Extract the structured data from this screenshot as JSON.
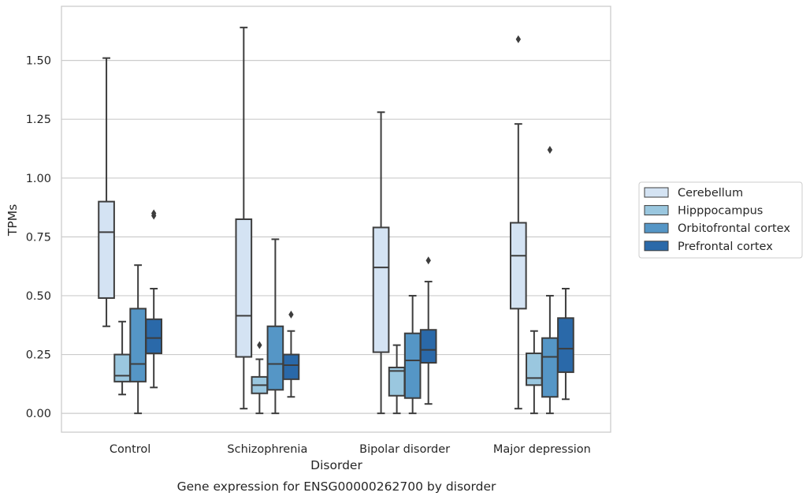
{
  "chart_data": {
    "type": "box",
    "title": "",
    "caption": "Gene expression for ENSG00000262700 by disorder",
    "xlabel": "Disorder",
    "ylabel": "TPMs",
    "ylim": [
      -0.08,
      1.73
    ],
    "yticks": [
      0.0,
      0.25,
      0.5,
      0.75,
      1.0,
      1.25,
      1.5
    ],
    "ytick_labels": [
      "0.00",
      "0.25",
      "0.50",
      "0.75",
      "1.00",
      "1.25",
      "1.50"
    ],
    "grid": "horizontal",
    "legend_position": "right",
    "categories": [
      "Control",
      "Schizophrenia",
      "Bipolar disorder",
      "Major depression"
    ],
    "series": [
      {
        "name": "Cerebellum",
        "color": "#d4e3f3",
        "boxes": [
          {
            "whisker_low": 0.37,
            "q1": 0.49,
            "median": 0.77,
            "q3": 0.9,
            "whisker_high": 1.51,
            "outliers": []
          },
          {
            "whisker_low": 0.02,
            "q1": 0.24,
            "median": 0.415,
            "q3": 0.825,
            "whisker_high": 1.64,
            "outliers": []
          },
          {
            "whisker_low": 0.0,
            "q1": 0.26,
            "median": 0.62,
            "q3": 0.79,
            "whisker_high": 1.28,
            "outliers": []
          },
          {
            "whisker_low": 0.02,
            "q1": 0.445,
            "median": 0.67,
            "q3": 0.81,
            "whisker_high": 1.23,
            "outliers": [
              1.59
            ]
          }
        ]
      },
      {
        "name": "Hipppocampus",
        "color": "#9ac7df",
        "boxes": [
          {
            "whisker_low": 0.08,
            "q1": 0.135,
            "median": 0.16,
            "q3": 0.25,
            "whisker_high": 0.39,
            "outliers": []
          },
          {
            "whisker_low": 0.0,
            "q1": 0.085,
            "median": 0.12,
            "q3": 0.155,
            "whisker_high": 0.23,
            "outliers": [
              0.29
            ]
          },
          {
            "whisker_low": 0.0,
            "q1": 0.075,
            "median": 0.18,
            "q3": 0.195,
            "whisker_high": 0.29,
            "outliers": []
          },
          {
            "whisker_low": 0.0,
            "q1": 0.12,
            "median": 0.15,
            "q3": 0.255,
            "whisker_high": 0.35,
            "outliers": []
          }
        ]
      },
      {
        "name": "Orbitofrontal cortex",
        "color": "#5596c6",
        "boxes": [
          {
            "whisker_low": 0.0,
            "q1": 0.135,
            "median": 0.21,
            "q3": 0.445,
            "whisker_high": 0.63,
            "outliers": []
          },
          {
            "whisker_low": 0.0,
            "q1": 0.1,
            "median": 0.21,
            "q3": 0.37,
            "whisker_high": 0.74,
            "outliers": []
          },
          {
            "whisker_low": 0.0,
            "q1": 0.065,
            "median": 0.225,
            "q3": 0.34,
            "whisker_high": 0.5,
            "outliers": []
          },
          {
            "whisker_low": 0.0,
            "q1": 0.07,
            "median": 0.24,
            "q3": 0.32,
            "whisker_high": 0.5,
            "outliers": [
              1.12
            ]
          }
        ]
      },
      {
        "name": "Prefrontal cortex",
        "color": "#2a69a9",
        "boxes": [
          {
            "whisker_low": 0.11,
            "q1": 0.255,
            "median": 0.32,
            "q3": 0.4,
            "whisker_high": 0.53,
            "outliers": [
              0.84,
              0.85
            ]
          },
          {
            "whisker_low": 0.07,
            "q1": 0.145,
            "median": 0.205,
            "q3": 0.25,
            "whisker_high": 0.35,
            "outliers": [
              0.42
            ]
          },
          {
            "whisker_low": 0.04,
            "q1": 0.215,
            "median": 0.27,
            "q3": 0.355,
            "whisker_high": 0.56,
            "outliers": [
              0.65
            ]
          },
          {
            "whisker_low": 0.06,
            "q1": 0.175,
            "median": 0.275,
            "q3": 0.405,
            "whisker_high": 0.53,
            "outliers": []
          }
        ]
      }
    ]
  }
}
